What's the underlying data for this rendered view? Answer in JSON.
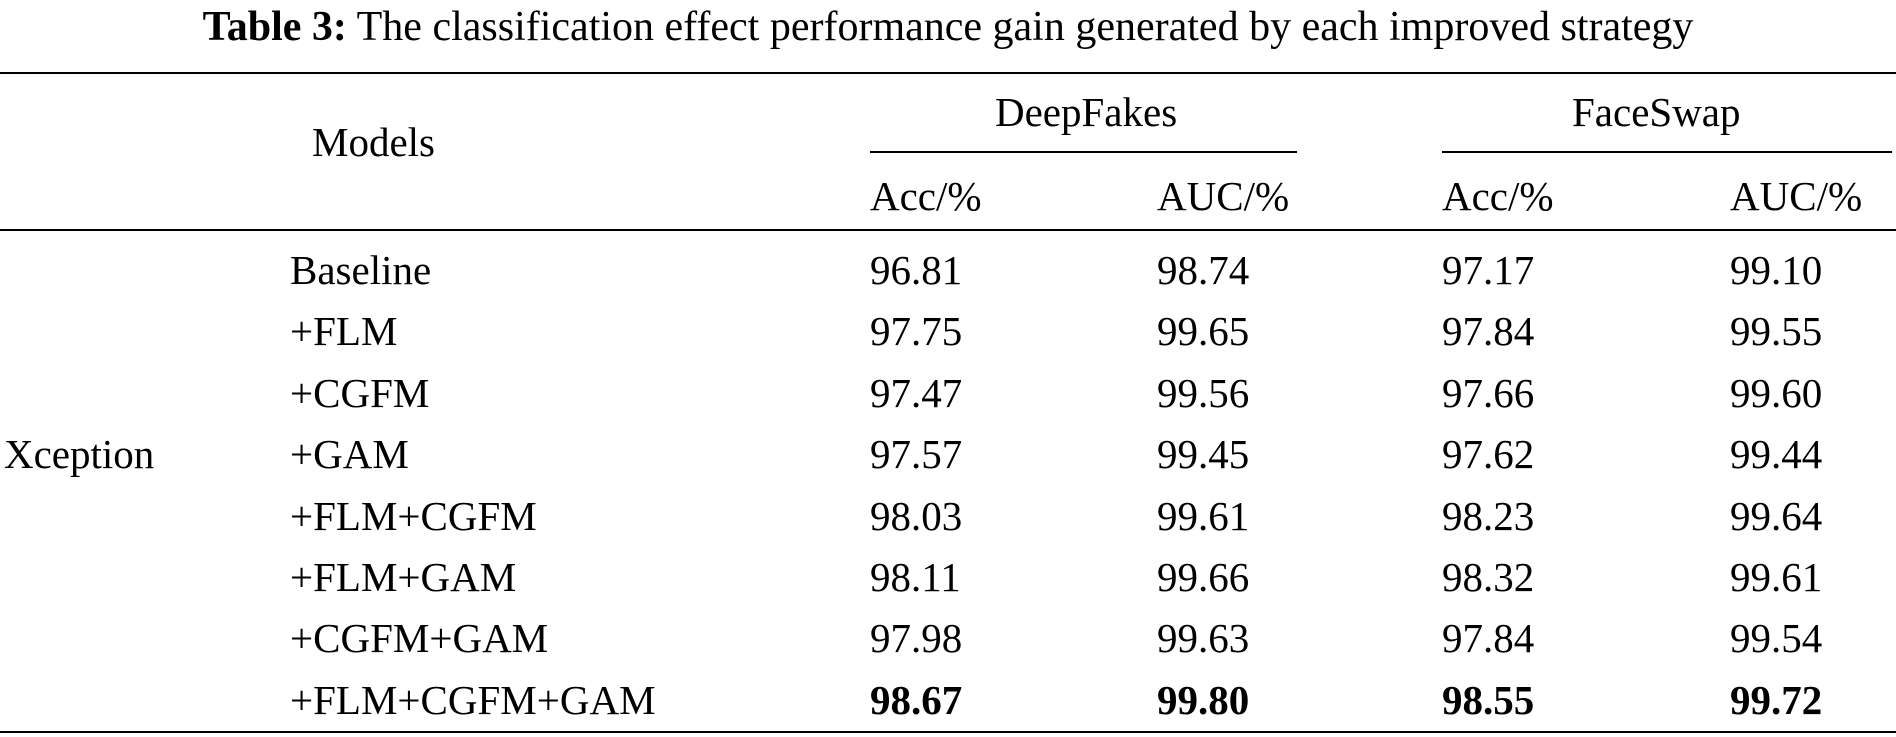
{
  "caption": {
    "label": "Table 3:",
    "text": "The classification effect performance gain generated by each improved strategy"
  },
  "table": {
    "header": {
      "models": "Models",
      "group1": "DeepFakes",
      "group2": "FaceSwap",
      "subcols": [
        "Acc/%",
        "AUC/%",
        "Acc/%",
        "AUC/%"
      ]
    },
    "model_name": "Xception",
    "rows": [
      {
        "strategy": "Baseline",
        "values": [
          "96.81",
          "98.74",
          "97.17",
          "99.10"
        ],
        "bold": false
      },
      {
        "strategy": "+FLM",
        "values": [
          "97.75",
          "99.65",
          "97.84",
          "99.55"
        ],
        "bold": false
      },
      {
        "strategy": "+CGFM",
        "values": [
          "97.47",
          "99.56",
          "97.66",
          "99.60"
        ],
        "bold": false
      },
      {
        "strategy": "+GAM",
        "values": [
          "97.57",
          "99.45",
          "97.62",
          "99.44"
        ],
        "bold": false
      },
      {
        "strategy": "+FLM+CGFM",
        "values": [
          "98.03",
          "99.61",
          "98.23",
          "99.64"
        ],
        "bold": false
      },
      {
        "strategy": "+FLM+GAM",
        "values": [
          "98.11",
          "99.66",
          "98.32",
          "99.61"
        ],
        "bold": false
      },
      {
        "strategy": "+CGFM+GAM",
        "values": [
          "97.98",
          "99.63",
          "97.84",
          "99.54"
        ],
        "bold": false
      },
      {
        "strategy": "+FLM+CGFM+GAM",
        "values": [
          "98.67",
          "99.80",
          "98.55",
          "99.72"
        ],
        "bold": true
      }
    ]
  }
}
